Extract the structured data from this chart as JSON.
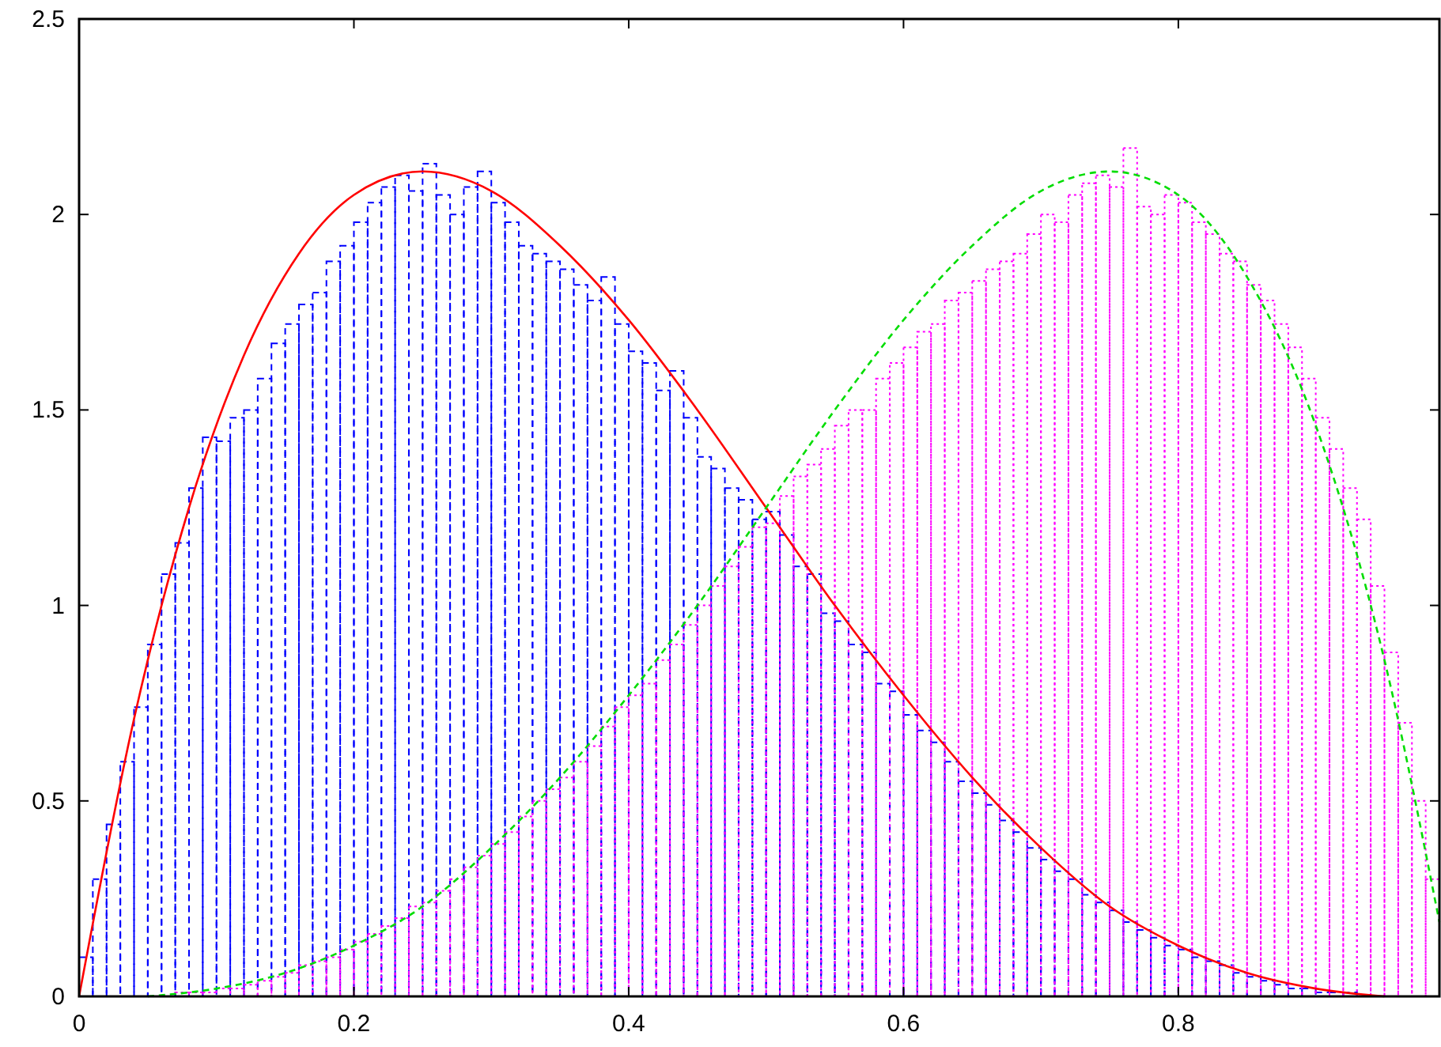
{
  "chart_data": {
    "type": "histogram",
    "bins": [
      0,
      0.01,
      0.02,
      0.03,
      0.04,
      0.05,
      0.06,
      0.07,
      0.08,
      0.09,
      0.1,
      0.11,
      0.12,
      0.13,
      0.14,
      0.15,
      0.16,
      0.17,
      0.18,
      0.19,
      0.2,
      0.21,
      0.22,
      0.23,
      0.24,
      0.25,
      0.26,
      0.27,
      0.28,
      0.29,
      0.3,
      0.31,
      0.32,
      0.33,
      0.34,
      0.35,
      0.36,
      0.37,
      0.38,
      0.39,
      0.4,
      0.41,
      0.42,
      0.43,
      0.44,
      0.45,
      0.46,
      0.47,
      0.48,
      0.49,
      0.5,
      0.51,
      0.52,
      0.53,
      0.54,
      0.55,
      0.56,
      0.57,
      0.58,
      0.59,
      0.6,
      0.61,
      0.62,
      0.63,
      0.64,
      0.65,
      0.66,
      0.67,
      0.68,
      0.69,
      0.7,
      0.71,
      0.72,
      0.73,
      0.74,
      0.75,
      0.76,
      0.77,
      0.78,
      0.79,
      0.8,
      0.81,
      0.82,
      0.83,
      0.84,
      0.85,
      0.86,
      0.87,
      0.88,
      0.89,
      0.9,
      0.91,
      0.92,
      0.93,
      0.94,
      0.95,
      0.96,
      0.97,
      0.98,
      0.99
    ],
    "series": [
      {
        "color": "#0000ff",
        "line_style": "dashed",
        "values": [
          0.1,
          0.3,
          0.44,
          0.6,
          0.74,
          0.9,
          1.08,
          1.16,
          1.3,
          1.43,
          1.42,
          1.48,
          1.5,
          1.58,
          1.67,
          1.72,
          1.77,
          1.8,
          1.88,
          1.92,
          1.98,
          2.03,
          2.07,
          2.1,
          2.06,
          2.13,
          2.05,
          2.0,
          2.07,
          2.11,
          2.03,
          1.98,
          1.92,
          1.9,
          1.88,
          1.86,
          1.82,
          1.78,
          1.84,
          1.72,
          1.65,
          1.62,
          1.55,
          1.6,
          1.48,
          1.38,
          1.35,
          1.3,
          1.27,
          1.22,
          1.24,
          1.18,
          1.1,
          1.08,
          0.98,
          0.96,
          0.9,
          0.88,
          0.8,
          0.78,
          0.72,
          0.68,
          0.65,
          0.6,
          0.55,
          0.52,
          0.49,
          0.45,
          0.42,
          0.38,
          0.35,
          0.32,
          0.3,
          0.26,
          0.24,
          0.22,
          0.19,
          0.17,
          0.15,
          0.13,
          0.12,
          0.1,
          0.09,
          0.08,
          0.06,
          0.05,
          0.04,
          0.03,
          0.02,
          0.02,
          0.01,
          0.01,
          0.01,
          0,
          0,
          0,
          0,
          0,
          0
        ]
      },
      {
        "color": "#ff00ff",
        "line_style": "dotted",
        "values": [
          0,
          0,
          0,
          0,
          0,
          0,
          0,
          0.01,
          0.01,
          0.01,
          0.02,
          0.02,
          0.03,
          0.04,
          0.05,
          0.06,
          0.08,
          0.09,
          0.1,
          0.12,
          0.14,
          0.16,
          0.18,
          0.2,
          0.23,
          0.24,
          0.27,
          0.3,
          0.33,
          0.36,
          0.39,
          0.42,
          0.46,
          0.5,
          0.53,
          0.56,
          0.6,
          0.64,
          0.69,
          0.74,
          0.77,
          0.8,
          0.86,
          0.9,
          0.95,
          1.0,
          1.05,
          1.1,
          1.15,
          1.2,
          1.21,
          1.28,
          1.33,
          1.36,
          1.4,
          1.46,
          1.5,
          1.5,
          1.58,
          1.62,
          1.66,
          1.7,
          1.72,
          1.78,
          1.8,
          1.83,
          1.86,
          1.88,
          1.9,
          1.95,
          2.0,
          1.98,
          2.05,
          2.08,
          2.1,
          2.07,
          2.17,
          2.02,
          2.0,
          2.05,
          2.03,
          1.98,
          1.95,
          1.9,
          1.88,
          1.82,
          1.78,
          1.72,
          1.66,
          1.58,
          1.48,
          1.4,
          1.3,
          1.22,
          1.05,
          0.88,
          0.7,
          0.5,
          0.3
        ]
      },
      {
        "type": "line",
        "color": "#ff0000",
        "line_style": "solid",
        "x": [
          0,
          0.04,
          0.08,
          0.12,
          0.16,
          0.2,
          0.25,
          0.3,
          0.35,
          0.4,
          0.45,
          0.5,
          0.55,
          0.6,
          0.65,
          0.7,
          0.75,
          0.8,
          0.85,
          0.9,
          0.95
        ],
        "values": [
          0,
          0.71,
          1.25,
          1.64,
          1.9,
          2.05,
          2.11,
          2.06,
          1.92,
          1.73,
          1.5,
          1.25,
          1.0,
          0.77,
          0.56,
          0.38,
          0.23,
          0.13,
          0.06,
          0.02,
          0
        ]
      },
      {
        "type": "line",
        "color": "#00dd00",
        "line_style": "dashed",
        "x": [
          0.05,
          0.1,
          0.15,
          0.2,
          0.25,
          0.3,
          0.35,
          0.4,
          0.45,
          0.5,
          0.55,
          0.6,
          0.65,
          0.7,
          0.75,
          0.8,
          0.85,
          0.9,
          0.95,
          0.99
        ],
        "values": [
          0,
          0.02,
          0.06,
          0.13,
          0.23,
          0.38,
          0.56,
          0.77,
          1.0,
          1.25,
          1.5,
          1.73,
          1.92,
          2.06,
          2.11,
          2.05,
          1.84,
          1.46,
          0.86,
          0.19
        ]
      }
    ],
    "xlim": [
      0,
      0.99
    ],
    "xticks": [
      0,
      0.2,
      0.4,
      0.6,
      0.8
    ],
    "ylim": [
      0,
      2.5
    ],
    "yticks": [
      0,
      0.5,
      1,
      1.5,
      2,
      2.5
    ],
    "grid": false
  }
}
